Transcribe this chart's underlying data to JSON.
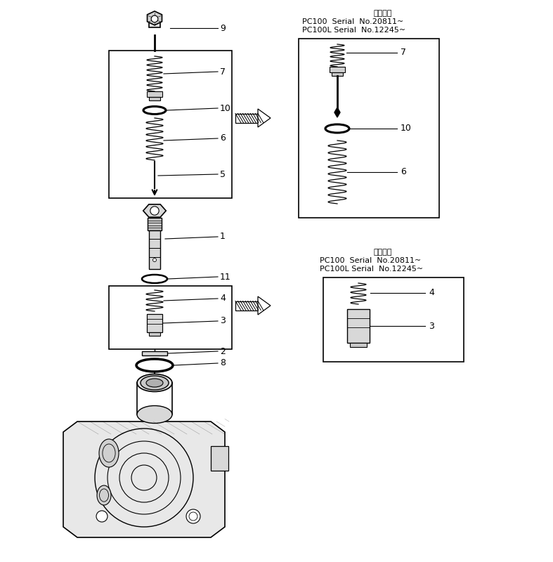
{
  "bg_color": "#ffffff",
  "line_color": "#000000",
  "title_top1": "適用号機",
  "title_top2": "PC100  Serial  No.20811~",
  "title_top3": "PC100L Serial  No.12245~",
  "title_bot1": "適用号機",
  "title_bot2": "PC100  Serial  No.20811~",
  "title_bot3": "PC100L Serial  No.12245~",
  "figsize": [
    7.87,
    8.0
  ],
  "dpi": 100
}
